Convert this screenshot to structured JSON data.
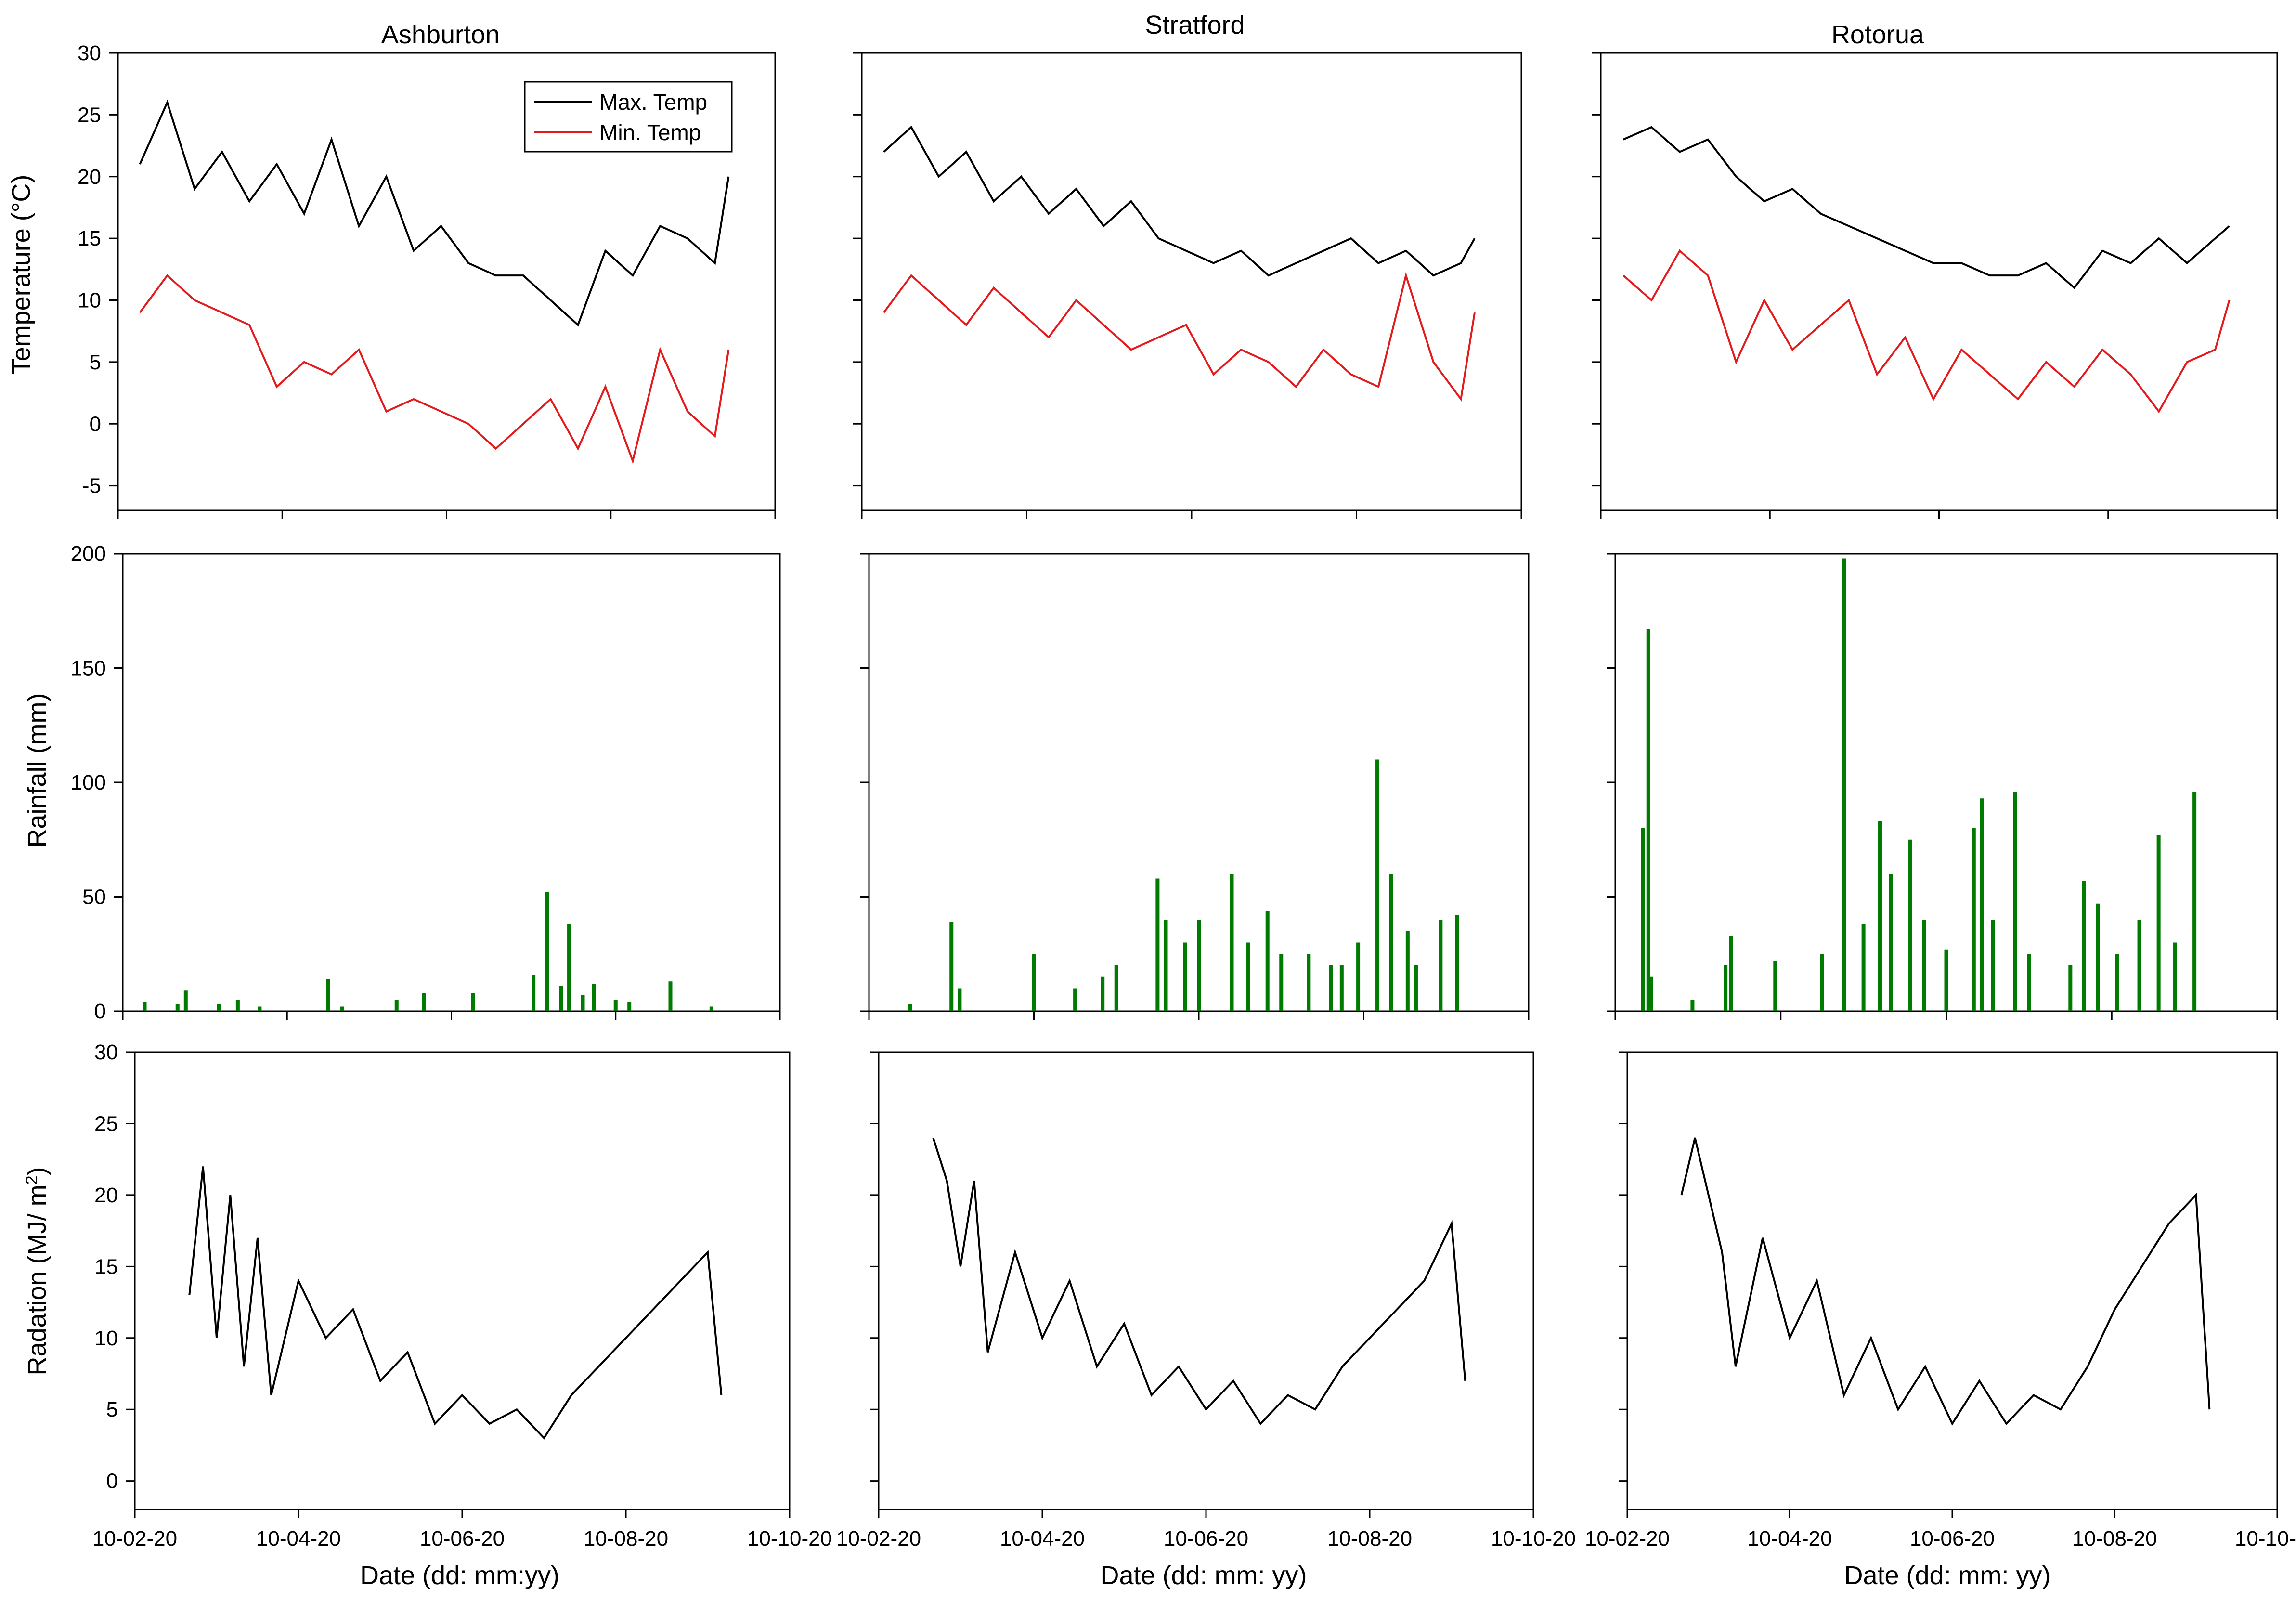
{
  "figure": {
    "sites": [
      "Ashburton",
      "Stratford",
      "Rotorua"
    ],
    "date_tick_labels": [
      "10-02-20",
      "10-04-20",
      "10-06-20",
      "10-08-20",
      "10-10-20"
    ],
    "xlabels": [
      "Date (dd: mm:yy)",
      "Date (dd: mm: yy)",
      "Date (dd: mm: yy)"
    ],
    "colors": {
      "max_temp": "#000000",
      "min_temp": "#e31a1c",
      "rainfall": "#007a00",
      "radiation": "#000000",
      "axis": "#000000"
    }
  },
  "chart_data": [
    {
      "panel": "temperature",
      "site": "Ashburton",
      "type": "line",
      "title": "Ashburton",
      "xlabel": "",
      "ylabel": "Temperature (°C)",
      "ylim": [
        -7,
        30
      ],
      "yticks": [
        -5,
        0,
        5,
        10,
        15,
        20,
        25,
        30
      ],
      "x_range_days": [
        0,
        240
      ],
      "legend": {
        "position": "top-right",
        "entries": [
          "Max. Temp",
          "Min. Temp"
        ]
      },
      "series": [
        {
          "name": "Max. Temp",
          "x": [
            0,
            10,
            20,
            30,
            40,
            50,
            60,
            70,
            80,
            90,
            100,
            110,
            120,
            130,
            140,
            150,
            160,
            170,
            180,
            190,
            200,
            210,
            215
          ],
          "values": [
            21,
            26,
            19,
            22,
            18,
            21,
            17,
            23,
            16,
            20,
            14,
            16,
            13,
            12,
            12,
            10,
            8,
            14,
            12,
            16,
            15,
            13,
            20
          ]
        },
        {
          "name": "Min. Temp",
          "x": [
            0,
            10,
            20,
            30,
            40,
            50,
            60,
            70,
            80,
            90,
            100,
            110,
            120,
            130,
            140,
            150,
            160,
            170,
            180,
            190,
            200,
            210,
            215
          ],
          "values": [
            9,
            12,
            10,
            9,
            8,
            3,
            5,
            4,
            6,
            1,
            2,
            1,
            0,
            -2,
            0,
            2,
            -2,
            3,
            -3,
            6,
            1,
            -1,
            6
          ]
        }
      ]
    },
    {
      "panel": "temperature",
      "site": "Stratford",
      "type": "line",
      "title": "Stratford",
      "xlabel": "",
      "ylabel": "",
      "ylim": [
        -7,
        30
      ],
      "yticks": [
        -5,
        0,
        5,
        10,
        15,
        20,
        25,
        30
      ],
      "x_range_days": [
        0,
        240
      ],
      "series": [
        {
          "name": "Max. Temp",
          "x": [
            0,
            10,
            20,
            30,
            40,
            50,
            60,
            70,
            80,
            90,
            100,
            110,
            120,
            130,
            140,
            150,
            160,
            170,
            180,
            190,
            200,
            210,
            215
          ],
          "values": [
            22,
            24,
            20,
            22,
            18,
            20,
            17,
            19,
            16,
            18,
            15,
            14,
            13,
            14,
            12,
            13,
            14,
            15,
            13,
            14,
            12,
            13,
            15
          ]
        },
        {
          "name": "Min. Temp",
          "x": [
            0,
            10,
            20,
            30,
            40,
            50,
            60,
            70,
            80,
            90,
            100,
            110,
            120,
            130,
            140,
            150,
            160,
            170,
            180,
            190,
            200,
            210,
            215
          ],
          "values": [
            9,
            12,
            10,
            8,
            11,
            9,
            7,
            10,
            8,
            6,
            7,
            8,
            4,
            6,
            5,
            3,
            6,
            4,
            3,
            12,
            5,
            2,
            9
          ]
        }
      ]
    },
    {
      "panel": "temperature",
      "site": "Rotorua",
      "type": "line",
      "title": "Rotorua",
      "xlabel": "",
      "ylabel": "",
      "ylim": [
        -7,
        30
      ],
      "yticks": [
        -5,
        0,
        5,
        10,
        15,
        20,
        25,
        30
      ],
      "x_range_days": [
        0,
        240
      ],
      "series": [
        {
          "name": "Max. Temp",
          "x": [
            0,
            10,
            20,
            30,
            40,
            50,
            60,
            70,
            80,
            90,
            100,
            110,
            120,
            130,
            140,
            150,
            160,
            170,
            180,
            190,
            200,
            210,
            215
          ],
          "values": [
            23,
            24,
            22,
            23,
            20,
            18,
            19,
            17,
            16,
            15,
            14,
            13,
            13,
            12,
            12,
            13,
            11,
            14,
            13,
            15,
            13,
            15,
            16
          ]
        },
        {
          "name": "Min. Temp",
          "x": [
            0,
            10,
            20,
            30,
            40,
            50,
            60,
            70,
            80,
            90,
            100,
            110,
            120,
            130,
            140,
            150,
            160,
            170,
            180,
            190,
            200,
            210,
            215
          ],
          "values": [
            12,
            10,
            14,
            12,
            5,
            10,
            6,
            8,
            10,
            4,
            7,
            2,
            6,
            4,
            2,
            5,
            3,
            6,
            4,
            1,
            5,
            6,
            10
          ]
        }
      ]
    },
    {
      "panel": "rainfall",
      "site": "Ashburton",
      "type": "bar",
      "title": "",
      "xlabel": "",
      "ylabel": "Rainfall (mm)",
      "ylim": [
        0,
        200
      ],
      "yticks": [
        0,
        50,
        100,
        150,
        200
      ],
      "x_range_days": [
        0,
        240
      ],
      "x": [
        8,
        20,
        23,
        35,
        42,
        50,
        75,
        80,
        100,
        110,
        128,
        150,
        155,
        160,
        163,
        168,
        172,
        180,
        185,
        200,
        215
      ],
      "values": [
        4,
        3,
        9,
        3,
        5,
        2,
        14,
        2,
        5,
        8,
        8,
        16,
        52,
        11,
        38,
        7,
        12,
        5,
        4,
        13,
        2
      ]
    },
    {
      "panel": "rainfall",
      "site": "Stratford",
      "type": "bar",
      "title": "",
      "xlabel": "",
      "ylabel": "",
      "ylim": [
        0,
        200
      ],
      "yticks": [
        0,
        50,
        100,
        150,
        200
      ],
      "x_range_days": [
        0,
        240
      ],
      "x": [
        15,
        30,
        33,
        60,
        75,
        85,
        90,
        105,
        108,
        115,
        120,
        132,
        138,
        145,
        150,
        160,
        168,
        172,
        178,
        185,
        190,
        196,
        199,
        208,
        214
      ],
      "values": [
        3,
        39,
        10,
        25,
        10,
        15,
        20,
        58,
        40,
        30,
        40,
        60,
        30,
        44,
        25,
        25,
        20,
        20,
        30,
        110,
        60,
        35,
        20,
        40,
        42
      ]
    },
    {
      "panel": "rainfall",
      "site": "Rotorua",
      "type": "bar",
      "title": "",
      "xlabel": "",
      "ylabel": "",
      "ylim": [
        0,
        200
      ],
      "yticks": [
        0,
        50,
        100,
        150,
        200
      ],
      "x_range_days": [
        0,
        240
      ],
      "x": [
        10,
        12,
        13,
        28,
        40,
        42,
        58,
        75,
        83,
        90,
        96,
        100,
        107,
        112,
        120,
        130,
        133,
        137,
        145,
        150,
        165,
        170,
        175,
        182,
        190,
        197,
        203,
        210
      ],
      "values": [
        80,
        167,
        15,
        5,
        20,
        33,
        22,
        25,
        198,
        38,
        83,
        60,
        75,
        40,
        27,
        80,
        93,
        40,
        96,
        25,
        20,
        57,
        47,
        25,
        40,
        77,
        30,
        96
      ]
    },
    {
      "panel": "radiation",
      "site": "Ashburton",
      "type": "line",
      "title": "",
      "xlabel": "Date (dd: mm:yy)",
      "ylabel": "Radiation (MJ/ m²)",
      "ylim": [
        -2,
        30
      ],
      "yticks": [
        0,
        5,
        10,
        15,
        20,
        25,
        30
      ],
      "x_range_days": [
        0,
        240
      ],
      "xtick_days": [
        0,
        60,
        120,
        180,
        240
      ],
      "x": [
        20,
        25,
        30,
        35,
        40,
        45,
        50,
        60,
        70,
        80,
        90,
        100,
        110,
        120,
        130,
        140,
        150,
        160,
        170,
        180,
        190,
        200,
        210,
        215
      ],
      "values": [
        13,
        22,
        10,
        20,
        8,
        17,
        6,
        14,
        10,
        12,
        7,
        9,
        4,
        6,
        4,
        5,
        3,
        6,
        8,
        10,
        12,
        14,
        16,
        6
      ]
    },
    {
      "panel": "radiation",
      "site": "Stratford",
      "type": "line",
      "title": "",
      "xlabel": "Date (dd: mm: yy)",
      "ylabel": "",
      "ylim": [
        -2,
        30
      ],
      "yticks": [
        0,
        5,
        10,
        15,
        20,
        25,
        30
      ],
      "x_range_days": [
        0,
        240
      ],
      "xtick_days": [
        0,
        60,
        120,
        180,
        240
      ],
      "x": [
        20,
        25,
        30,
        35,
        40,
        50,
        60,
        70,
        80,
        90,
        100,
        110,
        120,
        130,
        140,
        150,
        160,
        170,
        180,
        190,
        200,
        210,
        215
      ],
      "values": [
        24,
        21,
        15,
        21,
        9,
        16,
        10,
        14,
        8,
        11,
        6,
        8,
        5,
        7,
        4,
        6,
        5,
        8,
        10,
        12,
        14,
        18,
        7
      ]
    },
    {
      "panel": "radiation",
      "site": "Rotorua",
      "type": "line",
      "title": "",
      "xlabel": "Date (dd: mm: yy)",
      "ylabel": "",
      "ylim": [
        -2,
        30
      ],
      "yticks": [
        0,
        5,
        10,
        15,
        20,
        25,
        30
      ],
      "x_range_days": [
        0,
        240
      ],
      "xtick_days": [
        0,
        60,
        120,
        180,
        240
      ],
      "x": [
        20,
        25,
        30,
        35,
        40,
        50,
        60,
        70,
        80,
        90,
        100,
        110,
        120,
        130,
        140,
        150,
        160,
        170,
        180,
        190,
        200,
        210,
        215
      ],
      "values": [
        20,
        24,
        20,
        16,
        8,
        17,
        10,
        14,
        6,
        10,
        5,
        8,
        4,
        7,
        4,
        6,
        5,
        8,
        12,
        15,
        18,
        20,
        5
      ]
    }
  ]
}
